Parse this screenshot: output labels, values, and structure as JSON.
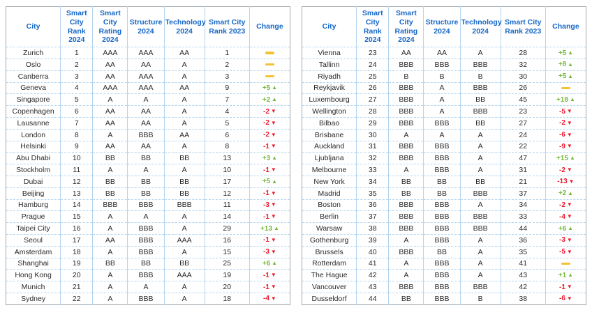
{
  "colors": {
    "header_text": "#1667c6",
    "change_up": "#76b83e",
    "change_down": "#ec1b2e",
    "change_none": "#f2c233",
    "border_outer": "#a3a7ab",
    "border_inner": "#b5d5ef",
    "cell_text": "#2a2a2a"
  },
  "icons": {
    "up_arrow": "▲",
    "down_arrow": "▼"
  },
  "chart_data": [
    {
      "type": "table",
      "columns": [
        "City",
        "Smart City Rank 2024",
        "Smart City Rating 2024",
        "Structure 2024",
        "Technology 2024",
        "Smart City Rank 2023",
        "Change"
      ],
      "rows": [
        [
          "Zurich",
          "1",
          "AAA",
          "AAA",
          "AA",
          "1",
          "0"
        ],
        [
          "Oslo",
          "2",
          "AA",
          "AA",
          "A",
          "2",
          "0"
        ],
        [
          "Canberra",
          "3",
          "AA",
          "AAA",
          "A",
          "3",
          "0"
        ],
        [
          "Geneva",
          "4",
          "AAA",
          "AAA",
          "AA",
          "9",
          "+5"
        ],
        [
          "Singapore",
          "5",
          "A",
          "A",
          "A",
          "7",
          "+2"
        ],
        [
          "Copenhagen",
          "6",
          "AA",
          "AA",
          "A",
          "4",
          "-2"
        ],
        [
          "Lausanne",
          "7",
          "AA",
          "AA",
          "A",
          "5",
          "-2"
        ],
        [
          "London",
          "8",
          "A",
          "BBB",
          "AA",
          "6",
          "-2"
        ],
        [
          "Helsinki",
          "9",
          "AA",
          "AA",
          "A",
          "8",
          "-1"
        ],
        [
          "Abu Dhabi",
          "10",
          "BB",
          "BB",
          "BB",
          "13",
          "+3"
        ],
        [
          "Stockholm",
          "11",
          "A",
          "A",
          "A",
          "10",
          "-1"
        ],
        [
          "Dubai",
          "12",
          "BB",
          "BB",
          "BB",
          "17",
          "+5"
        ],
        [
          "Beijing",
          "13",
          "BB",
          "BB",
          "BB",
          "12",
          "-1"
        ],
        [
          "Hamburg",
          "14",
          "BBB",
          "BBB",
          "BBB",
          "11",
          "-3"
        ],
        [
          "Prague",
          "15",
          "A",
          "A",
          "A",
          "14",
          "-1"
        ],
        [
          "Taipei City",
          "16",
          "A",
          "BBB",
          "A",
          "29",
          "+13"
        ],
        [
          "Seoul",
          "17",
          "AA",
          "BBB",
          "AAA",
          "16",
          "-1"
        ],
        [
          "Amsterdam",
          "18",
          "A",
          "BBB",
          "A",
          "15",
          "-3"
        ],
        [
          "Shanghai",
          "19",
          "BB",
          "BB",
          "BB",
          "25",
          "+6"
        ],
        [
          "Hong Kong",
          "20",
          "A",
          "BBB",
          "AAA",
          "19",
          "-1"
        ],
        [
          "Munich",
          "21",
          "A",
          "A",
          "A",
          "20",
          "-1"
        ],
        [
          "Sydney",
          "22",
          "A",
          "BBB",
          "A",
          "18",
          "-4"
        ]
      ]
    },
    {
      "type": "table",
      "columns": [
        "City",
        "Smart City Rank 2024",
        "Smart City Rating 2024",
        "Structure 2024",
        "Technology 2024",
        "Smart City Rank 2023",
        "Change"
      ],
      "rows": [
        [
          "Vienna",
          "23",
          "AA",
          "AA",
          "A",
          "28",
          "+5"
        ],
        [
          "Tallinn",
          "24",
          "BBB",
          "BBB",
          "BBB",
          "32",
          "+8"
        ],
        [
          "Riyadh",
          "25",
          "B",
          "B",
          "B",
          "30",
          "+5"
        ],
        [
          "Reykjavik",
          "26",
          "BBB",
          "A",
          "BBB",
          "26",
          "0"
        ],
        [
          "Luxembourg",
          "27",
          "BBB",
          "A",
          "BB",
          "45",
          "+18"
        ],
        [
          "Wellington",
          "28",
          "BBB",
          "A",
          "BBB",
          "23",
          "-5"
        ],
        [
          "Bilbao",
          "29",
          "BBB",
          "BBB",
          "BB",
          "27",
          "-2"
        ],
        [
          "Brisbane",
          "30",
          "A",
          "A",
          "A",
          "24",
          "-6"
        ],
        [
          "Auckland",
          "31",
          "BBB",
          "BBB",
          "A",
          "22",
          "-9"
        ],
        [
          "Ljubljana",
          "32",
          "BBB",
          "BBB",
          "A",
          "47",
          "+15"
        ],
        [
          "Melbourne",
          "33",
          "A",
          "BBB",
          "A",
          "31",
          "-2"
        ],
        [
          "New York",
          "34",
          "BB",
          "BB",
          "BB",
          "21",
          "-13"
        ],
        [
          "Madrid",
          "35",
          "BB",
          "BB",
          "BBB",
          "37",
          "+2"
        ],
        [
          "Boston",
          "36",
          "BBB",
          "BBB",
          "A",
          "34",
          "-2"
        ],
        [
          "Berlin",
          "37",
          "BBB",
          "BBB",
          "BBB",
          "33",
          "-4"
        ],
        [
          "Warsaw",
          "38",
          "BBB",
          "BBB",
          "BBB",
          "44",
          "+6"
        ],
        [
          "Gothenburg",
          "39",
          "A",
          "BBB",
          "A",
          "36",
          "-3"
        ],
        [
          "Brussels",
          "40",
          "BBB",
          "BB",
          "A",
          "35",
          "-5"
        ],
        [
          "Rotterdam",
          "41",
          "A",
          "BBB",
          "A",
          "41",
          "0"
        ],
        [
          "The Hague",
          "42",
          "A",
          "BBB",
          "A",
          "43",
          "+1"
        ],
        [
          "Vancouver",
          "43",
          "BBB",
          "BBB",
          "BBB",
          "42",
          "-1"
        ],
        [
          "Dusseldorf",
          "44",
          "BB",
          "BBB",
          "B",
          "38",
          "-6"
        ]
      ]
    }
  ]
}
